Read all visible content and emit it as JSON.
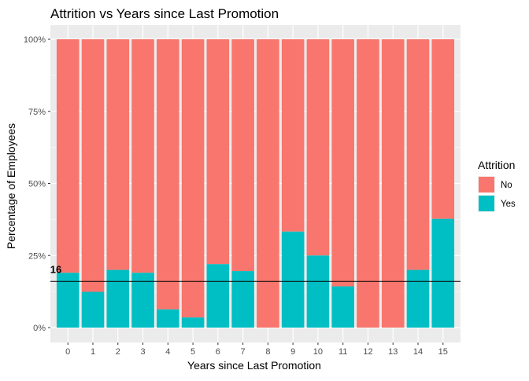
{
  "chart_data": {
    "type": "bar",
    "stacked": true,
    "title": "Attrition vs Years since Last Promotion",
    "xlabel": "Years since Last Promotion",
    "ylabel": "Percentage of Employees",
    "categories": [
      "0",
      "1",
      "2",
      "3",
      "4",
      "5",
      "6",
      "7",
      "8",
      "9",
      "10",
      "11",
      "12",
      "13",
      "14",
      "15"
    ],
    "ylim": [
      0,
      1
    ],
    "yticks": [
      0,
      0.25,
      0.5,
      0.75,
      1
    ],
    "ytick_labels": [
      "0%",
      "25%",
      "50%",
      "75%",
      "100%"
    ],
    "series": [
      {
        "name": "No",
        "color": "#F8766D",
        "values": [
          0.81,
          0.876,
          0.8,
          0.81,
          0.937,
          0.965,
          0.78,
          0.804,
          1.0,
          0.667,
          0.75,
          0.857,
          1.0,
          1.0,
          0.8,
          0.623
        ]
      },
      {
        "name": "Yes",
        "color": "#00BFC4",
        "values": [
          0.19,
          0.124,
          0.2,
          0.19,
          0.063,
          0.035,
          0.22,
          0.196,
          0.0,
          0.333,
          0.25,
          0.143,
          0.0,
          0.0,
          0.2,
          0.377
        ]
      }
    ],
    "reference_line": {
      "value": 0.16,
      "label": "16",
      "color": "#000000"
    },
    "legend": {
      "title": "Attrition",
      "position": "right"
    },
    "grid": true,
    "panel_background": "#EBEBEB",
    "grid_color": "#FFFFFF"
  }
}
